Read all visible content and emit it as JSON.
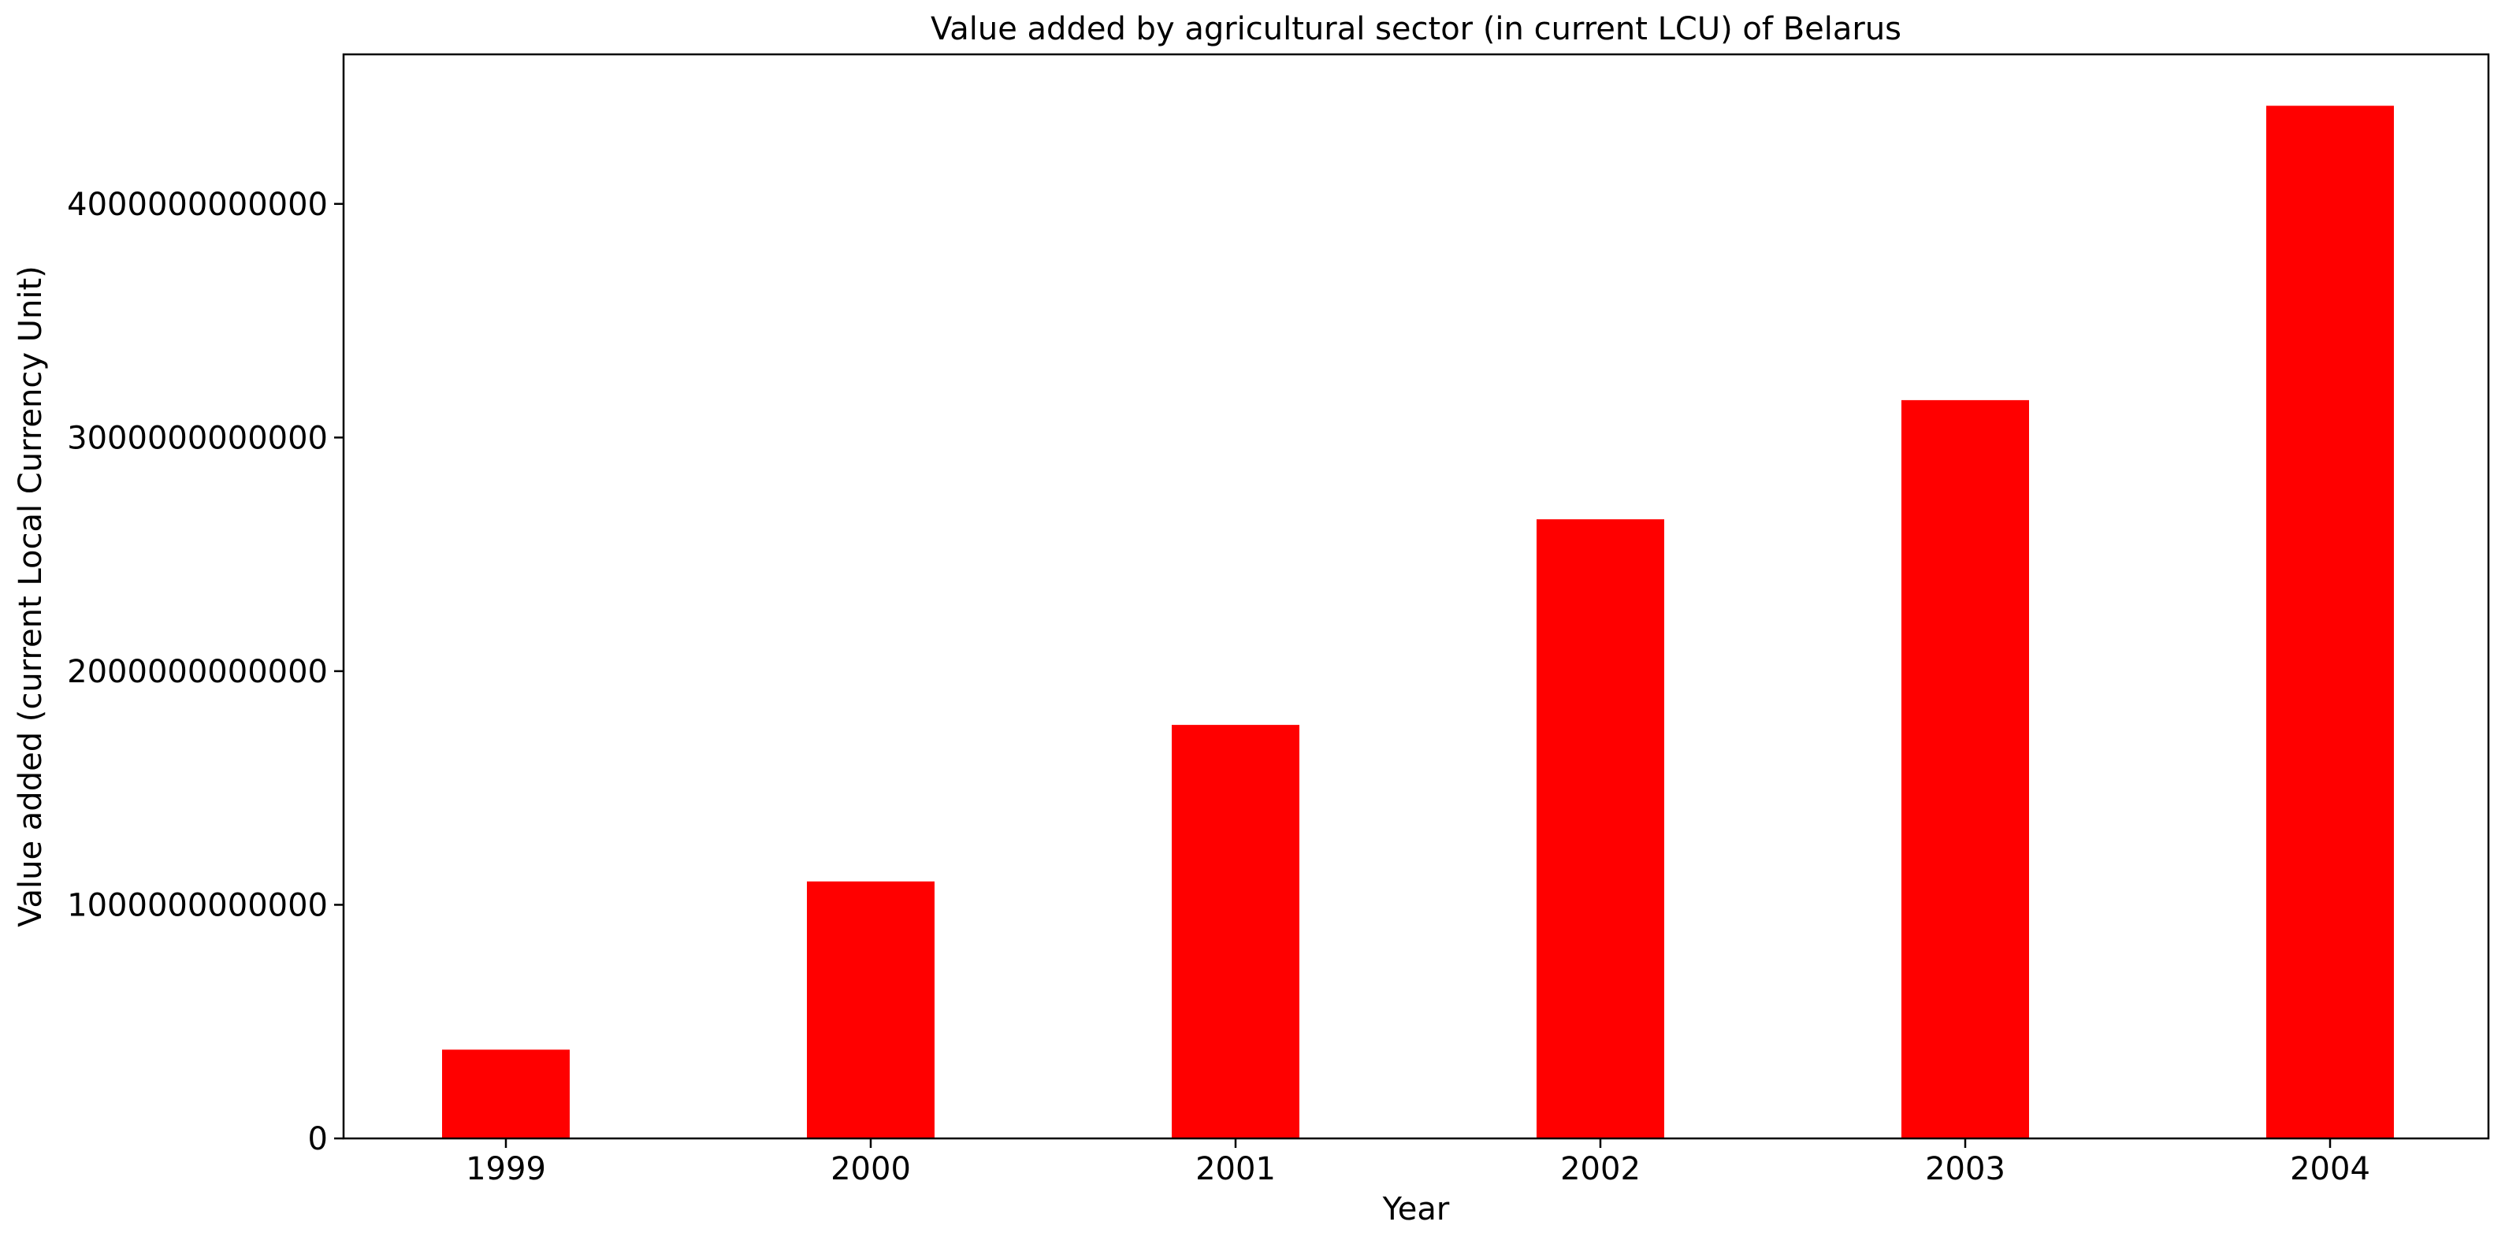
{
  "chart_data": {
    "type": "bar",
    "title": "Value added by agricultural sector (in current LCU) of Belarus",
    "xlabel": "Year",
    "ylabel": "Value added (current Local Currency Unit)",
    "categories": [
      "1999",
      "2000",
      "2001",
      "2002",
      "2003",
      "2004"
    ],
    "values": [
      380000000000,
      1100000000000,
      1770000000000,
      2650000000000,
      3160000000000,
      4420000000000
    ],
    "ylim": [
      0,
      4640000000000
    ],
    "yticks": [
      0,
      1000000000000,
      2000000000000,
      3000000000000,
      4000000000000
    ],
    "ytick_labels": [
      "0",
      "1000000000000",
      "2000000000000",
      "3000000000000",
      "4000000000000"
    ],
    "bar_color": "#ff0000",
    "grid": false,
    "legend": "none"
  }
}
